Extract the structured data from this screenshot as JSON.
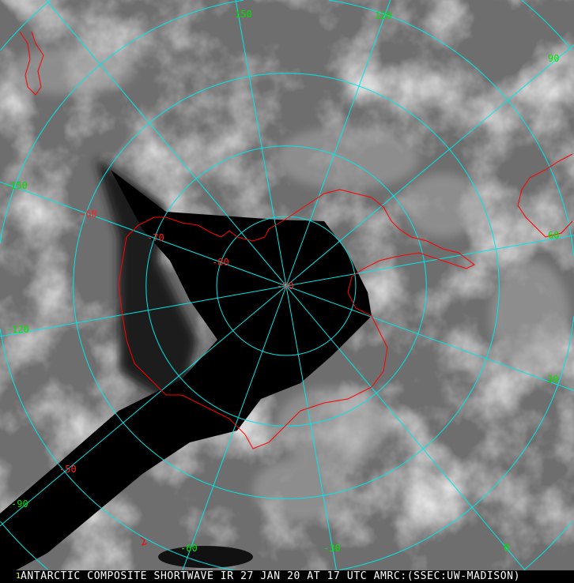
{
  "caption": {
    "marker": "1",
    "text": "ANTARCTIC COMPOSITE SHORTWAVE IR 27 JAN 20 AT 17 UTC AMRC:(SSEC:UW-MADISON)"
  },
  "map": {
    "projection": "south polar stereographic",
    "longitude_labels": [
      "150",
      "120",
      "90",
      "60",
      "30",
      "0",
      "-30",
      "-60",
      "-90",
      "-120",
      "-150"
    ],
    "longitude_values": [
      150,
      120,
      90,
      60,
      30,
      0,
      -30,
      -60,
      -90,
      -120,
      -150
    ],
    "latitude_labels": [
      "-90",
      "-80",
      "-70",
      "-60",
      "-50"
    ],
    "latitude_values": [
      -90,
      -80,
      -70,
      -60,
      -50,
      -40,
      -30
    ],
    "colors": {
      "grid": "#00e5e5",
      "coastline": "#ff0000",
      "longitude_label": "#00e000",
      "latitude_label": "#ff2020",
      "caption_text": "#ffffff",
      "caption_marker": "#ffff00"
    }
  }
}
